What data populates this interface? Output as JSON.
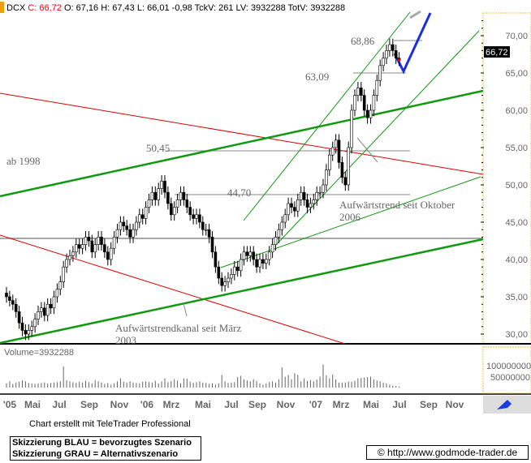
{
  "header": {
    "symbol": "DCX",
    "close_label": "C: 66,72",
    "rest": "O: 67,16 H: 67,43 L: 66,01 -0,98 TckV: 261 LV: 3932288 TotV: 3932288"
  },
  "colors": {
    "up_trend": "#119911",
    "resistance": "#e00000",
    "scenario_blue": "#1a2ee0",
    "scenario_gray": "#aaaaaa",
    "close": "#ff0000"
  },
  "chart_data": {
    "type": "candlestick",
    "ylim": [
      29,
      73
    ],
    "y_ticks": [
      "70,00",
      "65,00",
      "60,00",
      "55,00",
      "50,00",
      "45,00",
      "40,00",
      "35,00",
      "30,00"
    ],
    "last_price_label": "66,72",
    "x_ticks": [
      "'05",
      "Mai",
      "Jul",
      "Sep",
      "Nov",
      "'06",
      "Mrz",
      "Mai",
      "Jul",
      "Sep",
      "Nov",
      "'07",
      "Mrz",
      "Mai",
      "Jul",
      "Sep",
      "Nov"
    ],
    "weekly_close": [
      35,
      34.5,
      34,
      33,
      31.5,
      30.5,
      30,
      30.5,
      31,
      32,
      33,
      33.5,
      32.5,
      34,
      33.5,
      35,
      36,
      37,
      39,
      40,
      40.5,
      41,
      42,
      41.5,
      42,
      43,
      42.5,
      41,
      42,
      43,
      42,
      41,
      40,
      41.5,
      43,
      44,
      45,
      44.5,
      44,
      43,
      44,
      45,
      46,
      45.5,
      47,
      48,
      49,
      48,
      49.5,
      50.5,
      49,
      47.5,
      46,
      47,
      48,
      49,
      48,
      47,
      46,
      45.5,
      46,
      45,
      44,
      44,
      43,
      41,
      39,
      37.5,
      36.5,
      37,
      37.5,
      38,
      39,
      38.5,
      40,
      41,
      40.5,
      41,
      40,
      39,
      40,
      39.5,
      40,
      41,
      42,
      43,
      44,
      45,
      46,
      47.5,
      47,
      46.5,
      48,
      49,
      48,
      47,
      47.5,
      48,
      49,
      49,
      50,
      52,
      54,
      55,
      56,
      53,
      51,
      50,
      55,
      60,
      62,
      63,
      62,
      60,
      59,
      60,
      62,
      64,
      66,
      67,
      68,
      68.8,
      68,
      67,
      66.72
    ],
    "volume_label": "Volume=3932288",
    "volume_ticks": [
      "100000000",
      "50000000"
    ],
    "weekly_volume_millions": [
      20,
      30,
      18,
      24,
      28,
      34,
      30,
      22,
      20,
      18,
      20,
      22,
      24,
      20,
      22,
      24,
      26,
      30,
      100,
      35,
      30,
      26,
      22,
      28,
      24,
      32,
      26,
      20,
      36,
      30,
      24,
      18,
      22,
      14,
      20,
      30,
      44,
      28,
      24,
      30,
      24,
      22,
      20,
      28,
      30,
      26,
      24,
      32,
      20,
      30,
      44,
      26,
      32,
      40,
      34,
      20,
      44,
      42,
      28,
      22,
      26,
      30,
      24,
      22,
      18,
      20,
      14,
      20,
      60,
      30,
      22,
      24,
      26,
      50,
      56,
      40,
      34,
      30,
      40,
      32,
      20,
      14,
      20,
      26,
      30,
      24,
      40,
      96,
      52,
      60,
      40,
      68,
      60,
      30,
      44,
      32,
      36,
      30,
      38,
      52,
      110,
      58,
      44,
      62,
      40,
      24,
      24,
      24,
      28,
      28,
      32,
      44,
      46,
      48,
      50,
      52,
      40,
      34,
      30,
      24,
      20,
      14,
      10,
      8,
      5
    ],
    "annotations": [
      "68,86",
      "63,09",
      "50,45",
      "44,70",
      "ab 1998",
      "Aufwärtstrend seit Oktober",
      "2006",
      "Aufwärtstrendkanal seit März",
      "2003"
    ]
  },
  "footer": {
    "credit": "Chart erstellt mit TeleTrader Professional",
    "legend": [
      "Skizzierung BLAU = bevorzugtes Szenario",
      "Skizzierung GRAU = Alternativszenario"
    ],
    "site": "© http://www.godmode-trader.de"
  }
}
